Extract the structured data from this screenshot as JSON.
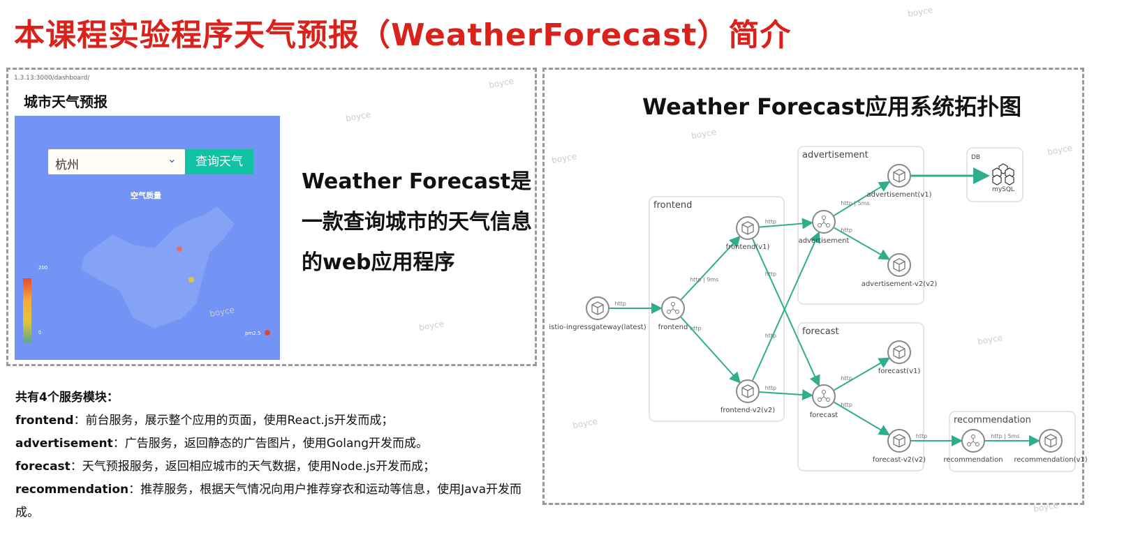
{
  "slide_title": "本课程实验程序天气预报（WeatherForecast）简介",
  "app": {
    "url": "1.3.13:3000/dashboard/",
    "title": "城市天气预报",
    "city_select": "杭州",
    "query_button": "查询天气",
    "map_title": "空气质量",
    "legend_max": "200",
    "legend_min": "0",
    "series_label": "pm2.5"
  },
  "description": "Weather Forecast是一款查询城市的天气信息的web应用程序",
  "modules": {
    "heading": "共有4个服务模块：",
    "items": [
      {
        "name": "frontend",
        "text": "：前台服务，展示整个应用的页面，使用React.js开发而成；"
      },
      {
        "name": "advertisement",
        "text": "：广告服务，返回静态的广告图片，使用Golang开发而成。"
      },
      {
        "name": "forecast",
        "text": "：天气预报服务，返回相应城市的天气数据，使用Node.js开发而成；"
      },
      {
        "name": "recommendation",
        "text": "：推荐服务，根据天气情况向用户推荐穿衣和运动等信息，使用Java开发而成。"
      }
    ]
  },
  "topology": {
    "title": "Weather Forecast应用系统拓扑图",
    "groups": [
      {
        "id": "frontend",
        "label": "frontend"
      },
      {
        "id": "advertisement",
        "label": "advertisement"
      },
      {
        "id": "forecast",
        "label": "forecast"
      },
      {
        "id": "recommendation",
        "label": "recommendation"
      },
      {
        "id": "db",
        "label": "DB"
      }
    ],
    "nodes": [
      {
        "id": "ingress",
        "label": "istio-ingressgateway(latest)",
        "kind": "workload"
      },
      {
        "id": "frontend",
        "label": "frontend",
        "kind": "service"
      },
      {
        "id": "fv1",
        "label": "frontend(v1)",
        "kind": "workload"
      },
      {
        "id": "fv2",
        "label": "frontend-v2(v2)",
        "kind": "workload"
      },
      {
        "id": "adv",
        "label": "advertisement",
        "kind": "service"
      },
      {
        "id": "av1",
        "label": "advertisement(v1)",
        "kind": "workload"
      },
      {
        "id": "av2",
        "label": "advertisement-v2(v2)",
        "kind": "workload"
      },
      {
        "id": "fc",
        "label": "forecast",
        "kind": "service"
      },
      {
        "id": "fcv1",
        "label": "forecast(v1)",
        "kind": "workload"
      },
      {
        "id": "fcv2",
        "label": "forecast-v2(v2)",
        "kind": "workload"
      },
      {
        "id": "rec",
        "label": "recommendation",
        "kind": "service"
      },
      {
        "id": "recv1",
        "label": "recommendation(v1)",
        "kind": "workload"
      },
      {
        "id": "mysql",
        "label": "mySQL",
        "kind": "database"
      }
    ],
    "edges": [
      {
        "from": "ingress",
        "to": "frontend",
        "label": "http"
      },
      {
        "from": "frontend",
        "to": "fv1",
        "label": "http | 9ms"
      },
      {
        "from": "frontend",
        "to": "fv2",
        "label": "http"
      },
      {
        "from": "fv1",
        "to": "adv",
        "label": "http"
      },
      {
        "from": "fv1",
        "to": "fc",
        "label": "http"
      },
      {
        "from": "fv2",
        "to": "adv",
        "label": "http"
      },
      {
        "from": "fv2",
        "to": "fc",
        "label": "http"
      },
      {
        "from": "adv",
        "to": "av1",
        "label": "http | 5ms"
      },
      {
        "from": "adv",
        "to": "av2",
        "label": "http"
      },
      {
        "from": "fc",
        "to": "fcv1",
        "label": "http"
      },
      {
        "from": "fc",
        "to": "fcv2",
        "label": "http"
      },
      {
        "from": "fcv2",
        "to": "rec",
        "label": "http"
      },
      {
        "from": "rec",
        "to": "recv1",
        "label": "http | 5ms"
      },
      {
        "from": "av1",
        "to": "mysql",
        "label": ""
      }
    ]
  },
  "watermark": "boyce",
  "colors": {
    "title": "#d9221c",
    "edge": "#2fae8e",
    "query_button": "#13c1a3",
    "map_bg": "#7393f5"
  }
}
